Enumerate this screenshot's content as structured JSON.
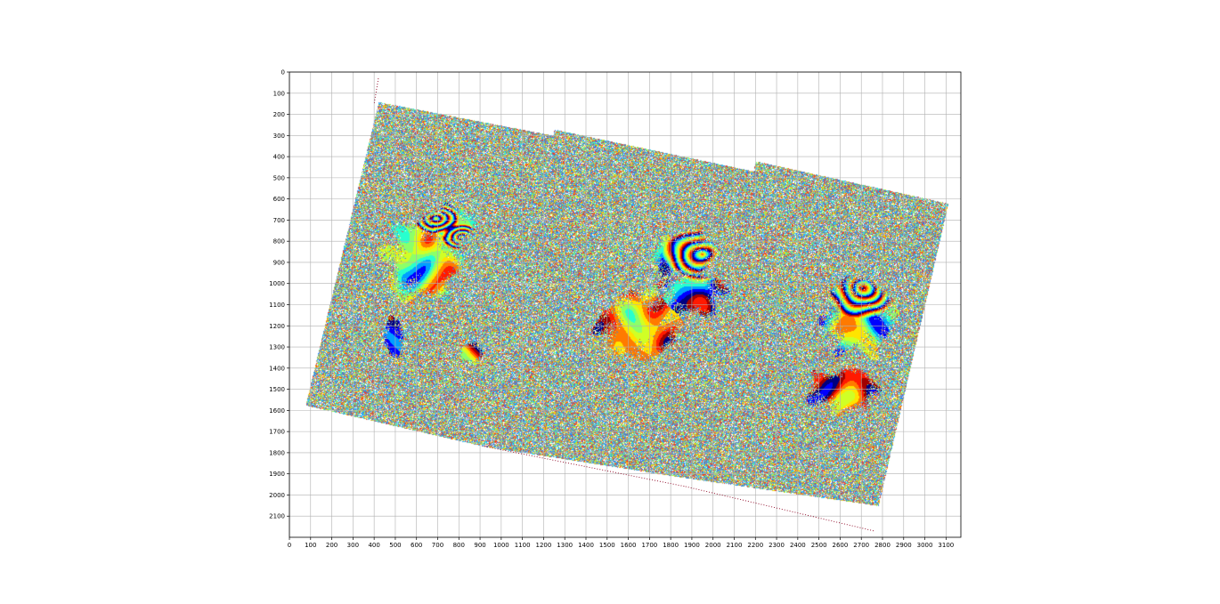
{
  "chart_data": {
    "type": "heatmap",
    "title": "",
    "xlabel": "",
    "ylabel": "",
    "xlim": [
      0,
      3170
    ],
    "ylim": [
      2200,
      0
    ],
    "grid": true,
    "x_ticks": [
      0,
      100,
      200,
      300,
      400,
      500,
      600,
      700,
      800,
      900,
      1000,
      1100,
      1200,
      1300,
      1400,
      1500,
      1600,
      1700,
      1800,
      1900,
      2000,
      2100,
      2200,
      2300,
      2400,
      2500,
      2600,
      2700,
      2800,
      2900,
      3000,
      3100
    ],
    "y_ticks": [
      0,
      100,
      200,
      300,
      400,
      500,
      600,
      700,
      800,
      900,
      1000,
      1100,
      1200,
      1300,
      1400,
      1500,
      1600,
      1700,
      1800,
      1900,
      2000,
      2100
    ],
    "x_tick_labels": [
      "0",
      "100",
      "200",
      "300",
      "400",
      "500",
      "600",
      "700",
      "800",
      "900",
      "1000",
      "1100",
      "1200",
      "1300",
      "1400",
      "1500",
      "1600",
      "1700",
      "1800",
      "1900",
      "2000",
      "2100",
      "2200",
      "2300",
      "2400",
      "2500",
      "2600",
      "2700",
      "2800",
      "2900",
      "3000",
      "3100"
    ],
    "y_tick_labels": [
      "0",
      "100",
      "200",
      "300",
      "400",
      "500",
      "600",
      "700",
      "800",
      "900",
      "1000",
      "1100",
      "1200",
      "1300",
      "1400",
      "1500",
      "1600",
      "1700",
      "1800",
      "1900",
      "2000",
      "2100"
    ],
    "colormap": [
      "#00007f",
      "#0000ff",
      "#00a0ff",
      "#28ffcf",
      "#8cff6a",
      "#d0ff26",
      "#ffe400",
      "#ff7a00",
      "#ff1a00",
      "#a00000"
    ],
    "noise_colors": [
      "#8c8c8c",
      "#6f7f9a",
      "#b4b4b4",
      "#ffd700",
      "#ff3b1a",
      "#2b7fff",
      "#26d6ff",
      "#ffffff",
      "#7cff6a"
    ],
    "swaths": [
      {
        "name_hidden": "",
        "corners": [
          [
            420,
            140
          ],
          [
            1250,
            300
          ],
          [
            920,
            1770
          ],
          [
            75,
            1575
          ]
        ]
      },
      {
        "name_hidden": "",
        "corners": [
          [
            1250,
            270
          ],
          [
            2200,
            470
          ],
          [
            1880,
            1920
          ],
          [
            920,
            1770
          ]
        ]
      },
      {
        "name_hidden": "",
        "corners": [
          [
            2200,
            420
          ],
          [
            3110,
            620
          ],
          [
            2780,
            2050
          ],
          [
            1880,
            1920
          ]
        ]
      }
    ],
    "coherent_regions": [
      {
        "cx": 630,
        "cy": 880,
        "rx": 250,
        "ry": 280,
        "base": 0.5
      },
      {
        "cx": 760,
        "cy": 720,
        "rx": 150,
        "ry": 110,
        "base": 0.3
      },
      {
        "cx": 860,
        "cy": 1330,
        "rx": 80,
        "ry": 60,
        "base": 0.8
      },
      {
        "cx": 490,
        "cy": 1250,
        "rx": 60,
        "ry": 130,
        "base": 0.2
      },
      {
        "cx": 1850,
        "cy": 860,
        "rx": 210,
        "ry": 150,
        "base": 0.35
      },
      {
        "cx": 1650,
        "cy": 1200,
        "rx": 260,
        "ry": 230,
        "base": 0.7
      },
      {
        "cx": 1900,
        "cy": 1050,
        "rx": 200,
        "ry": 140,
        "base": 0.15
      },
      {
        "cx": 2690,
        "cy": 1150,
        "rx": 220,
        "ry": 250,
        "base": 0.45
      },
      {
        "cx": 2620,
        "cy": 1500,
        "rx": 230,
        "ry": 140,
        "base": 0.85
      }
    ],
    "fringe_centers": [
      {
        "cx": 690,
        "cy": 690,
        "rx": 70,
        "ry": 45
      },
      {
        "cx": 810,
        "cy": 780,
        "rx": 60,
        "ry": 40
      },
      {
        "cx": 1950,
        "cy": 860,
        "rx": 120,
        "ry": 80
      },
      {
        "cx": 2700,
        "cy": 1020,
        "rx": 110,
        "ry": 90
      }
    ],
    "baseline_lines": [
      {
        "from": [
          420,
          30
        ],
        "to": [
          400,
          150
        ]
      },
      {
        "from": [
          920,
          1770
        ],
        "to": [
          1870,
          1960
        ]
      },
      {
        "from": [
          1870,
          1960
        ],
        "to": [
          2760,
          2170
        ]
      }
    ]
  }
}
